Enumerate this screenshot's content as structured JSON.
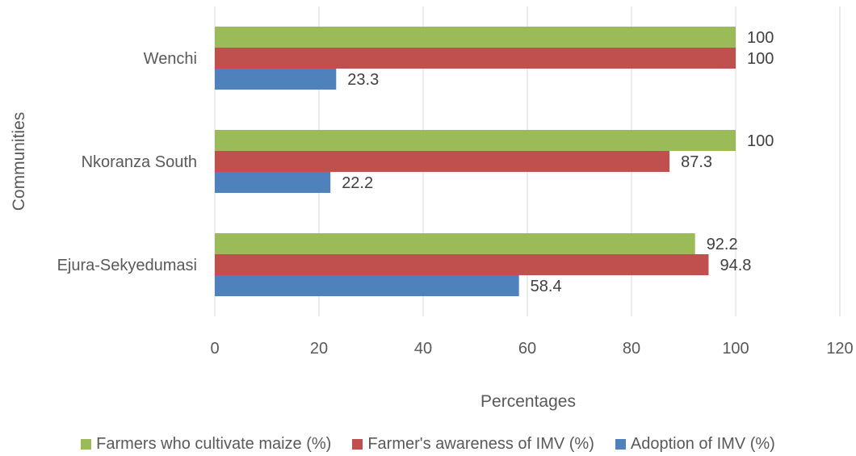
{
  "chart_data": {
    "type": "bar",
    "orientation": "horizontal",
    "categories": [
      "Wenchi",
      "Nkoranza South",
      "Ejura-Sekyedumasi"
    ],
    "series": [
      {
        "name": "Farmers who cultivate maize (%)",
        "color": "#9BBB59",
        "values": [
          100,
          100,
          92.2
        ]
      },
      {
        "name": "Farmer's awareness of IMV (%)",
        "color": "#C0504D",
        "values": [
          100,
          87.3,
          94.8
        ]
      },
      {
        "name": "Adoption of IMV (%)",
        "color": "#4F81BD",
        "values": [
          23.3,
          22.2,
          58.4
        ]
      }
    ],
    "xlabel": "Percentages",
    "ylabel": "Communities",
    "xlim": [
      0,
      120
    ],
    "xticks": [
      "0",
      "20",
      "40",
      "60",
      "80",
      "100",
      "120"
    ],
    "grid": true,
    "legend_position": "bottom"
  }
}
